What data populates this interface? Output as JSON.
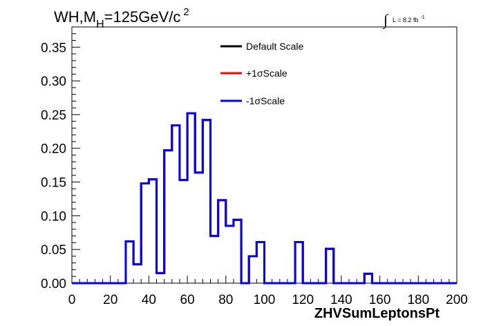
{
  "chart_data": {
    "type": "line",
    "title": {
      "main": "WH,M",
      "sub": "H",
      "rest": "=125GeV/c",
      "sup": "2"
    },
    "lumi": {
      "integral": "∫",
      "text": "L = 8.2 fb",
      "sup": "-1"
    },
    "xlabel": "ZHVSumLeptonsPt",
    "ylabel": "",
    "xlim": [
      0,
      200
    ],
    "ylim": [
      0,
      0.38
    ],
    "x_ticks": [
      "0",
      "20",
      "40",
      "60",
      "80",
      "100",
      "120",
      "140",
      "160",
      "180",
      "200"
    ],
    "y_ticks": [
      "0.00",
      "0.05",
      "0.10",
      "0.15",
      "0.20",
      "0.25",
      "0.30",
      "0.35"
    ],
    "bin_width": 4,
    "bin_edges_start": 0,
    "series": [
      {
        "name": "Default Scale",
        "color": "#000000",
        "values": [
          0,
          0,
          0,
          0,
          0,
          0,
          0,
          0.062,
          0.028,
          0.148,
          0.154,
          0.015,
          0.197,
          0.234,
          0.153,
          0.252,
          0.164,
          0.242,
          0.07,
          0.123,
          0.085,
          0.094,
          0,
          0.04,
          0.061,
          0,
          0,
          0,
          0,
          0.061,
          0,
          0,
          0,
          0.051,
          0,
          0,
          0,
          0,
          0.014,
          0,
          0,
          0,
          0,
          0,
          0,
          0,
          0,
          0,
          0,
          0
        ]
      },
      {
        "name": "+1σScale",
        "color": "#ff0000",
        "values": [
          0,
          0,
          0,
          0,
          0,
          0,
          0,
          0.062,
          0.028,
          0.148,
          0.154,
          0.015,
          0.197,
          0.234,
          0.153,
          0.252,
          0.164,
          0.242,
          0.07,
          0.123,
          0.085,
          0.094,
          0,
          0.04,
          0.061,
          0,
          0,
          0,
          0,
          0.061,
          0,
          0,
          0,
          0.051,
          0,
          0,
          0,
          0,
          0.014,
          0,
          0,
          0,
          0,
          0,
          0,
          0,
          0,
          0,
          0,
          0
        ]
      },
      {
        "name": "-1σScale",
        "color": "#0000ff",
        "values": [
          0,
          0,
          0,
          0,
          0,
          0,
          0,
          0.062,
          0.028,
          0.148,
          0.154,
          0.015,
          0.197,
          0.234,
          0.153,
          0.252,
          0.164,
          0.242,
          0.07,
          0.123,
          0.085,
          0.094,
          0,
          0.04,
          0.061,
          0,
          0,
          0,
          0,
          0.061,
          0,
          0,
          0,
          0.051,
          0,
          0,
          0,
          0,
          0.014,
          0,
          0,
          0,
          0,
          0,
          0,
          0,
          0,
          0,
          0,
          0
        ]
      }
    ],
    "legend_position": "top-center",
    "grid": false
  }
}
